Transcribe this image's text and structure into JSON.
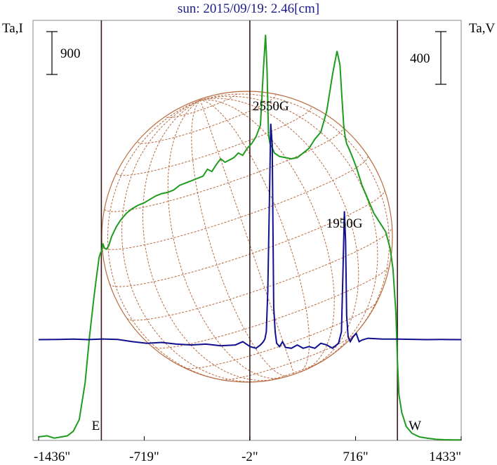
{
  "chart_data": {
    "type": "line",
    "title": "sun: 2015/09/19: 2.46[cm]",
    "ylabel_left": "Ta,I",
    "ylabel_right": "Ta,V",
    "scale_bars": {
      "left": "900",
      "right": "400"
    },
    "x_ticks": [
      "-1436\"",
      "-719\"",
      "-2\"",
      "716\"",
      "1433\""
    ],
    "x_tick_values": [
      -1436,
      -719,
      -2,
      716,
      1433
    ],
    "xlim": [
      -1436,
      1433
    ],
    "limb_markers": [
      {
        "label": "E",
        "x": -1010
      },
      {
        "label": "W",
        "x": 1000
      }
    ],
    "vertical_lines": [
      -1010,
      -2,
      1000
    ],
    "annotations": [
      {
        "text": "2550G",
        "x": 140
      },
      {
        "text": "1950G",
        "x": 640
      }
    ],
    "colors": {
      "intensity": "#1f9c1f",
      "polarization": "#10108f",
      "grid": "#b86a3f",
      "vline": "#3a1a1a"
    },
    "series": [
      {
        "key": "intensity",
        "x": [
          -1436,
          -1380,
          -1330,
          -1280,
          -1240,
          -1200,
          -1160,
          -1120,
          -1090,
          -1060,
          -1040,
          -1025,
          -1015,
          -1008,
          -1000,
          -990,
          -975,
          -960,
          -940,
          -910,
          -880,
          -840,
          -800,
          -760,
          -720,
          -680,
          -640,
          -600,
          -560,
          -520,
          -480,
          -440,
          -400,
          -360,
          -320,
          -290,
          -260,
          -230,
          -200,
          -170,
          -140,
          -110,
          -80,
          -50,
          -20,
          10,
          40,
          70,
          90,
          105,
          115,
          125,
          135,
          145,
          165,
          200,
          240,
          280,
          320,
          360,
          400,
          440,
          480,
          520,
          560,
          590,
          610,
          625,
          635,
          645,
          655,
          670,
          690,
          720,
          760,
          800,
          840,
          880,
          920,
          950,
          970,
          990,
          1000,
          1010,
          1030,
          1060,
          1100,
          1150,
          1200,
          1260,
          1320,
          1380,
          1433
        ],
        "y": [
          1.5,
          2.0,
          1.0,
          1.5,
          2.0,
          4.0,
          9.0,
          25.0,
          45.0,
          62.0,
          72.0,
          79.0,
          81.0,
          81.5,
          85.0,
          83.0,
          82.5,
          84.0,
          88.0,
          92.0,
          95.0,
          98.0,
          100.0,
          101.5,
          102.5,
          104.0,
          105.5,
          106.5,
          107.0,
          108.0,
          110.0,
          111.0,
          112.0,
          113.0,
          114.0,
          117.0,
          116.0,
          119.0,
          121.5,
          120.0,
          121.0,
          122.0,
          124.0,
          123.0,
          126.0,
          128.0,
          131.0,
          136.0,
          160.0,
          175.0,
          160.0,
          132.0,
          128.0,
          127.0,
          124.0,
          122.5,
          122.0,
          121.5,
          122.0,
          124.0,
          126.0,
          130.0,
          133.0,
          142.0,
          158.0,
          168.0,
          162.0,
          146.0,
          136.0,
          131.0,
          128.0,
          126.0,
          123.0,
          118.0,
          110.0,
          104.0,
          98.0,
          94.0,
          90.0,
          83.0,
          74.0,
          55.0,
          35.0,
          20.0,
          12.0,
          6.0,
          3.0,
          1.5,
          1.0,
          0.5,
          0.3,
          0.2,
          0.2
        ]
      },
      {
        "key": "polarization",
        "x": [
          -1436,
          -1300,
          -1200,
          -1100,
          -1000,
          -900,
          -800,
          -700,
          -600,
          -500,
          -400,
          -300,
          -200,
          -100,
          -50,
          0,
          40,
          70,
          90,
          100,
          110,
          120,
          130,
          140,
          150,
          155,
          160,
          170,
          180,
          200,
          220,
          240,
          280,
          320,
          360,
          400,
          440,
          480,
          520,
          560,
          600,
          620,
          630,
          640,
          648,
          655,
          665,
          680,
          700,
          720,
          740,
          760,
          800,
          900,
          1000,
          1100,
          1200,
          1300,
          1433
        ],
        "y": [
          0.2,
          0.3,
          0.5,
          0.2,
          0.6,
          0.3,
          -1.0,
          -2.0,
          -1.5,
          -2.5,
          -3.0,
          -2.5,
          -3.5,
          -3.0,
          -1.0,
          -4.0,
          -5.0,
          -3.0,
          -1.0,
          0.5,
          5.0,
          30.0,
          80.0,
          131.0,
          118.0,
          70.0,
          20.0,
          5.0,
          -2.0,
          -4.0,
          -1.0,
          -4.5,
          -5.0,
          -3.0,
          -5.0,
          -4.0,
          -5.0,
          -2.0,
          -3.0,
          -5.0,
          -2.0,
          5.0,
          40.0,
          78.0,
          60.0,
          15.0,
          2.0,
          -1.0,
          2.0,
          4.0,
          -1.0,
          0.0,
          1.0,
          0.5,
          0.5,
          0.4,
          0.2,
          0.3,
          0.2
        ]
      }
    ]
  }
}
